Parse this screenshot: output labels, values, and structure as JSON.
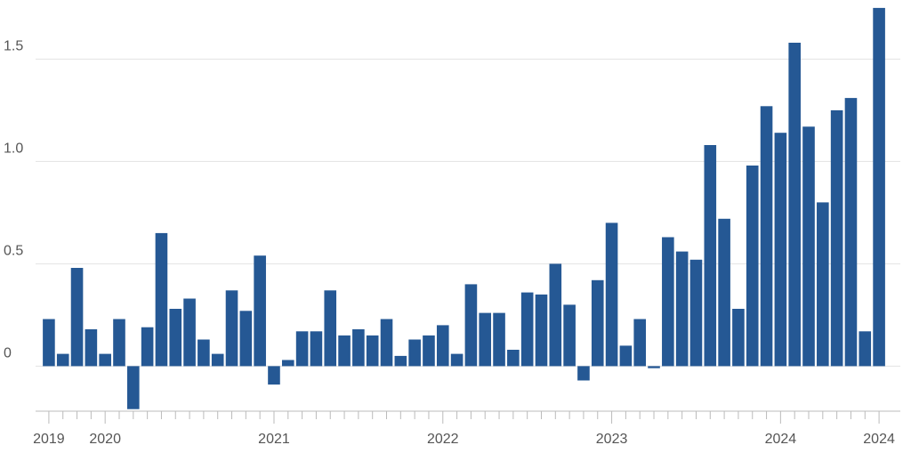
{
  "chart_data": {
    "type": "bar",
    "categories": [
      "2019",
      null,
      null,
      null,
      "2020",
      null,
      null,
      null,
      null,
      null,
      null,
      null,
      null,
      null,
      null,
      null,
      "2021",
      null,
      null,
      null,
      null,
      null,
      null,
      null,
      null,
      null,
      null,
      null,
      "2022",
      null,
      null,
      null,
      null,
      null,
      null,
      null,
      null,
      null,
      null,
      null,
      "2023",
      null,
      null,
      null,
      null,
      null,
      null,
      null,
      null,
      null,
      null,
      null,
      "2024",
      null,
      null,
      null,
      null,
      null,
      null,
      "2024"
    ],
    "values": [
      0.23,
      0.06,
      0.48,
      0.18,
      0.06,
      0.23,
      -0.21,
      0.19,
      0.65,
      0.28,
      0.33,
      0.13,
      0.06,
      0.37,
      0.27,
      0.54,
      -0.09,
      0.03,
      0.17,
      0.17,
      0.37,
      0.15,
      0.18,
      0.15,
      0.23,
      0.05,
      0.13,
      0.15,
      0.2,
      0.06,
      0.4,
      0.26,
      0.26,
      0.08,
      0.36,
      0.35,
      0.5,
      0.3,
      -0.07,
      0.42,
      0.7,
      0.1,
      0.23,
      -0.01,
      0.63,
      0.56,
      0.52,
      1.08,
      0.72,
      0.28,
      0.98,
      1.27,
      1.14,
      1.58,
      1.17,
      0.8,
      1.25,
      1.31,
      0.17,
      1.75
    ],
    "color": "#255894",
    "ylim": [
      -0.22,
      1.78
    ],
    "yticks": [
      0,
      0.5,
      {
        "value": 1,
        "label": "1.0"
      },
      1.5
    ],
    "grid": true
  }
}
